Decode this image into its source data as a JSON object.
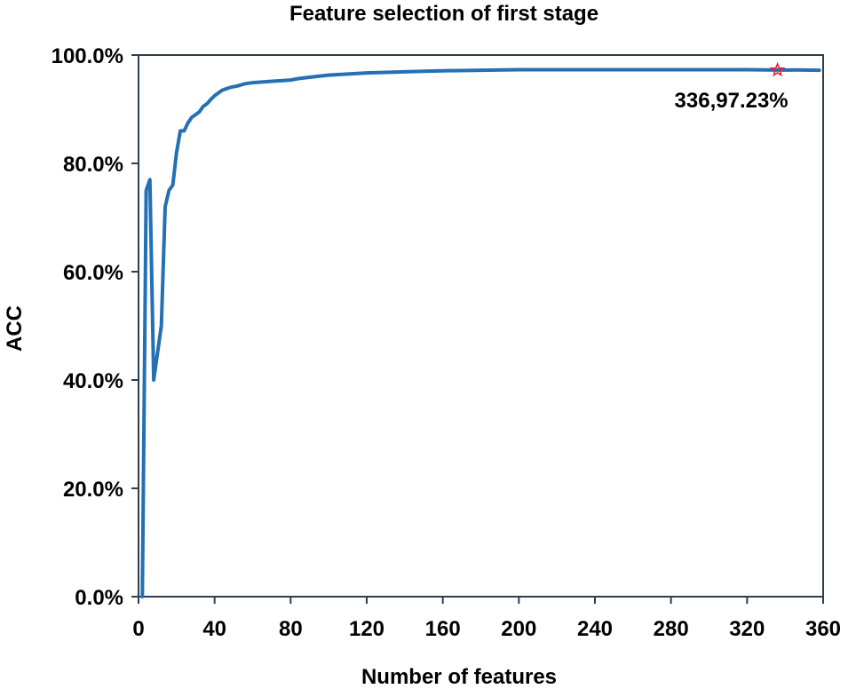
{
  "chart_data": {
    "type": "line",
    "title": "Feature selection of first stage",
    "xlabel": "Number of features",
    "ylabel": "ACC",
    "xlim": [
      0,
      360
    ],
    "ylim": [
      0,
      100
    ],
    "x_ticks": [
      0,
      40,
      80,
      120,
      160,
      200,
      240,
      280,
      320,
      360
    ],
    "x_tick_labels": [
      "0",
      "40",
      "80",
      "120",
      "160",
      "200",
      "240",
      "280",
      "320",
      "360"
    ],
    "y_ticks": [
      0,
      20,
      40,
      60,
      80,
      100
    ],
    "y_tick_labels": [
      "0.0%",
      "20.0%",
      "40.0%",
      "60.0%",
      "80.0%",
      "100.0%"
    ],
    "grid": false,
    "line_color": "#2470b3",
    "series": [
      {
        "x": [
          2,
          4,
          6,
          8,
          10,
          12,
          14,
          16,
          18,
          20,
          22,
          24,
          26,
          28,
          30,
          32,
          34,
          36,
          38,
          40,
          44,
          48,
          52,
          56,
          60,
          64,
          68,
          72,
          76,
          80,
          85,
          90,
          95,
          100,
          110,
          120,
          130,
          140,
          150,
          160,
          180,
          200,
          220,
          240,
          260,
          280,
          300,
          320,
          336,
          345,
          358
        ],
        "values": [
          0,
          75,
          77,
          40,
          45,
          50,
          72,
          75,
          76,
          82,
          86,
          86,
          87.5,
          88.5,
          89,
          89.5,
          90.5,
          91,
          91.8,
          92.5,
          93.5,
          94,
          94.3,
          94.7,
          94.9,
          95,
          95.1,
          95.2,
          95.3,
          95.4,
          95.7,
          95.9,
          96.1,
          96.3,
          96.5,
          96.7,
          96.8,
          96.9,
          97.0,
          97.1,
          97.2,
          97.3,
          97.3,
          97.3,
          97.3,
          97.3,
          97.3,
          97.3,
          97.23,
          97.25,
          97.2
        ]
      }
    ],
    "highlight": {
      "x": 336,
      "y": 97.23,
      "marker": "star",
      "color": "#e0243a",
      "label": "336,97.23%"
    }
  }
}
